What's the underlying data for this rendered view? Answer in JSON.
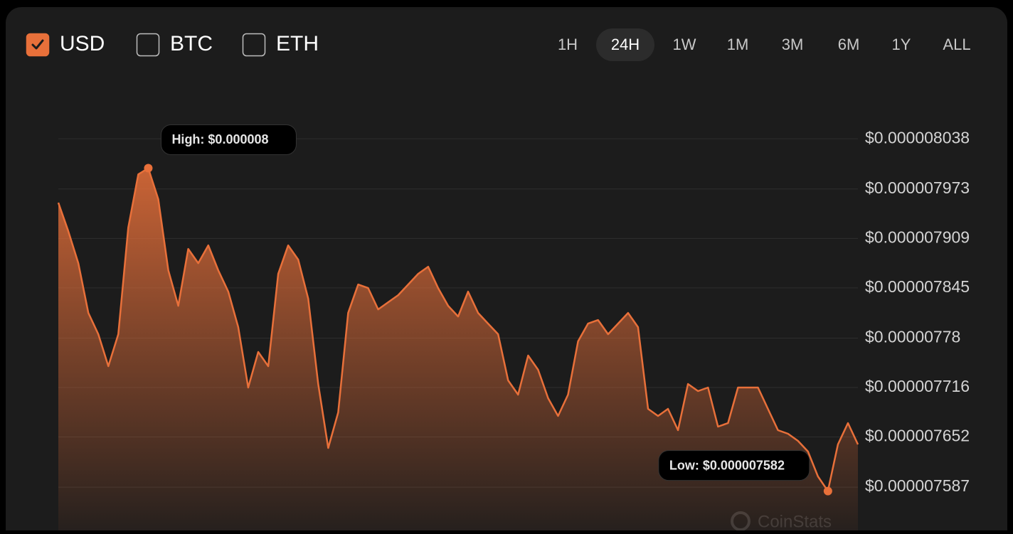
{
  "currencies": [
    {
      "label": "USD",
      "checked": true
    },
    {
      "label": "BTC",
      "checked": false
    },
    {
      "label": "ETH",
      "checked": false
    }
  ],
  "ranges": [
    {
      "label": "1H",
      "active": false
    },
    {
      "label": "24H",
      "active": true
    },
    {
      "label": "1W",
      "active": false
    },
    {
      "label": "1M",
      "active": false
    },
    {
      "label": "3M",
      "active": false
    },
    {
      "label": "6M",
      "active": false
    },
    {
      "label": "1Y",
      "active": false
    },
    {
      "label": "ALL",
      "active": false
    }
  ],
  "chart_data": {
    "type": "area",
    "series": [
      {
        "name": "USD",
        "color": "#e8703a",
        "values": [
          7.9552e-06,
          7.9184e-06,
          7.877e-06,
          7.8126e-06,
          7.785e-06,
          7.7436e-06,
          7.785e-06,
          7.923e-06,
          7.992e-06,
          8e-06,
          7.9598e-06,
          7.8678e-06,
          7.8218e-06,
          7.8954e-06,
          7.877e-06,
          7.9e-06,
          7.8678e-06,
          7.8402e-06,
          7.7942e-06,
          7.716e-06,
          7.762e-06,
          7.7436e-06,
          7.8632e-06,
          7.9e-06,
          7.8816e-06,
          7.831e-06,
          7.7206e-06,
          7.6378e-06,
          7.6838e-06,
          7.8126e-06,
          7.8494e-06,
          7.8448e-06,
          7.8172e-06,
          7.8264e-06,
          7.8356e-06,
          7.8494e-06,
          7.8632e-06,
          7.8724e-06,
          7.8448e-06,
          7.8218e-06,
          7.808e-06,
          7.8402e-06,
          7.8126e-06,
          7.7988e-06,
          7.785e-06,
          7.7252e-06,
          7.7068e-06,
          7.7574e-06,
          7.739e-06,
          7.7022e-06,
          7.6792e-06,
          7.7068e-06,
          7.7758e-06,
          7.7988e-06,
          7.8034e-06,
          7.785e-06,
          7.7988e-06,
          7.8126e-06,
          7.7942e-06,
          7.6884e-06,
          7.6792e-06,
          7.6884e-06,
          7.6608e-06,
          7.7206e-06,
          7.7114e-06,
          7.716e-06,
          7.6654e-06,
          7.67e-06,
          7.716e-06,
          7.716e-06,
          7.716e-06,
          7.6884e-06,
          7.6608e-06,
          7.6562e-06,
          7.647e-06,
          7.6332e-06,
          7.601e-06,
          7.582e-06,
          7.6424e-06,
          7.67e-06,
          7.6424e-06
        ]
      }
    ],
    "ylim": [
      7.531e-06,
      8.098e-06
    ],
    "yticks": [
      {
        "value": 8.038e-06,
        "label": "$0.000008038"
      },
      {
        "value": 7.973e-06,
        "label": "$0.000007973"
      },
      {
        "value": 7.909e-06,
        "label": "$0.000007909"
      },
      {
        "value": 7.845e-06,
        "label": "$0.000007845"
      },
      {
        "value": 7.78e-06,
        "label": "$0.00000778"
      },
      {
        "value": 7.716e-06,
        "label": "$0.000007716"
      },
      {
        "value": 7.652e-06,
        "label": "$0.000007652"
      },
      {
        "value": 7.587e-06,
        "label": "$0.000007587"
      }
    ],
    "grid": true,
    "annotations": [
      {
        "text": "High: $0.000008"
      },
      {
        "text": "Low: $0.000007582"
      }
    ],
    "watermark": "CoinStats"
  }
}
